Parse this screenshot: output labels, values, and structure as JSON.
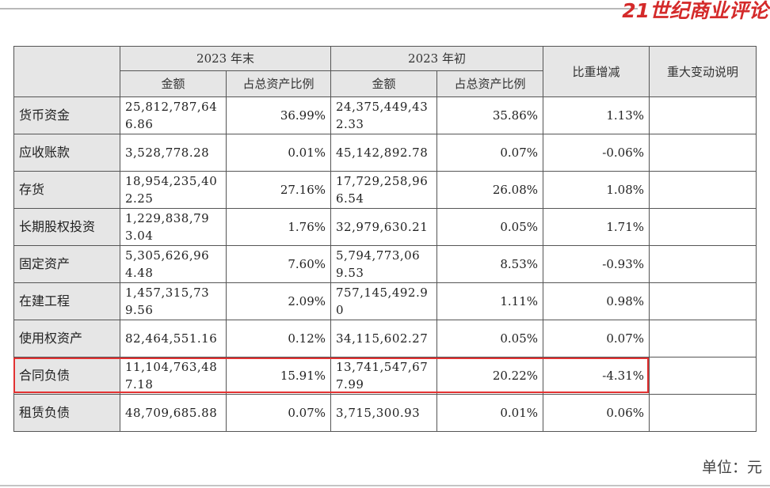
{
  "brand": "21世纪商业评论",
  "header": {
    "group_end": "2023 年末",
    "group_begin": "2023 年初",
    "amount": "金额",
    "ratio": "占总资产比例",
    "change": "比重增减",
    "note": "重大变动说明"
  },
  "rows": [
    {
      "label": "货币资金",
      "end_amount": "25,812,787,646.86",
      "end_ratio": "36.99%",
      "begin_amount": "24,375,449,432.33",
      "begin_ratio": "35.86%",
      "change": "1.13%",
      "note": ""
    },
    {
      "label": "应收账款",
      "end_amount": "3,528,778.28",
      "end_ratio": "0.01%",
      "begin_amount": "45,142,892.78",
      "begin_ratio": "0.07%",
      "change": "-0.06%",
      "note": ""
    },
    {
      "label": "存货",
      "end_amount": "18,954,235,402.25",
      "end_ratio": "27.16%",
      "begin_amount": "17,729,258,966.54",
      "begin_ratio": "26.08%",
      "change": "1.08%",
      "note": ""
    },
    {
      "label": "长期股权投资",
      "end_amount": "1,229,838,793.04",
      "end_ratio": "1.76%",
      "begin_amount": "32,979,630.21",
      "begin_ratio": "0.05%",
      "change": "1.71%",
      "note": ""
    },
    {
      "label": "固定资产",
      "end_amount": "5,305,626,964.48",
      "end_ratio": "7.60%",
      "begin_amount": "5,794,773,069.53",
      "begin_ratio": "8.53%",
      "change": "-0.93%",
      "note": ""
    },
    {
      "label": "在建工程",
      "end_amount": "1,457,315,739.56",
      "end_ratio": "2.09%",
      "begin_amount": "757,145,492.90",
      "begin_ratio": "1.11%",
      "change": "0.98%",
      "note": ""
    },
    {
      "label": "使用权资产",
      "end_amount": "82,464,551.16",
      "end_ratio": "0.12%",
      "begin_amount": "34,115,602.27",
      "begin_ratio": "0.05%",
      "change": "0.07%",
      "note": ""
    },
    {
      "label": "合同负债",
      "end_amount": "11,104,763,487.18",
      "end_ratio": "15.91%",
      "begin_amount": "13,741,547,677.99",
      "begin_ratio": "20.22%",
      "change": "-4.31%",
      "note": ""
    },
    {
      "label": "租赁负债",
      "end_amount": "48,709,685.88",
      "end_ratio": "0.07%",
      "begin_amount": "3,715,300.93",
      "begin_ratio": "0.01%",
      "change": "0.06%",
      "note": ""
    }
  ],
  "highlight_color": "#e23232",
  "brand_color": "#d42a2a",
  "unit": "单位：元"
}
